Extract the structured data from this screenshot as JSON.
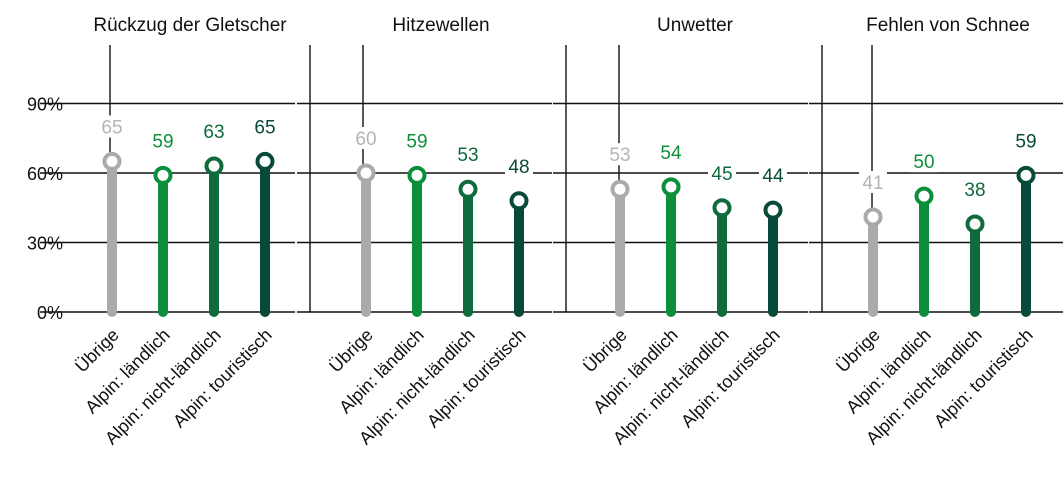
{
  "chart_data": {
    "type": "lollipop",
    "y_tick_labels": [
      "0%",
      "30%",
      "60%",
      "90%"
    ],
    "ylim": [
      0,
      120
    ],
    "grid": true,
    "categories": [
      "Übrige",
      "Alpin: ländlich",
      "Alpin: nicht-ländlich",
      "Alpin: touristisch"
    ],
    "colors": [
      "#aaaaaa",
      "#0c8f3a",
      "#0f6a3c",
      "#084a3a"
    ],
    "label_colors": [
      "#b4b4b4",
      "#0c8f3a",
      "#0f6a3c",
      "#084a3a"
    ],
    "panels": [
      {
        "title": "Rückzug der Gletscher",
        "values": [
          65,
          59,
          63,
          65
        ]
      },
      {
        "title": "Hitzewellen",
        "values": [
          60,
          59,
          53,
          48
        ]
      },
      {
        "title": "Unwetter",
        "values": [
          53,
          54,
          45,
          44
        ]
      },
      {
        "title": "Fehlen von Schnee",
        "values": [
          41,
          50,
          38,
          59
        ]
      }
    ]
  }
}
